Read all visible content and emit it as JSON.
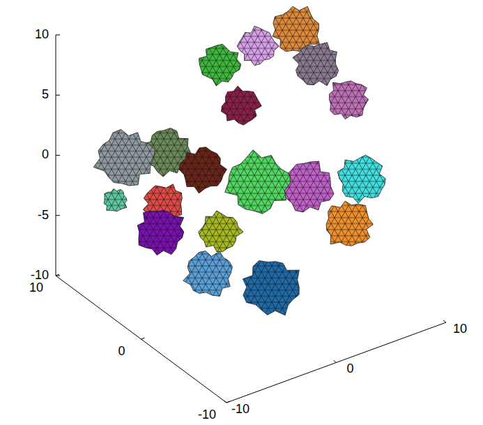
{
  "chart_data": {
    "type": "mesh3d",
    "xlim": [
      -10,
      10
    ],
    "xticks": [
      -10,
      0,
      10
    ],
    "ylim": [
      -10,
      10
    ],
    "yticks": [
      -10,
      0,
      10
    ],
    "zlim": [
      -10,
      10
    ],
    "zticks": [
      -10,
      -5,
      0,
      5,
      10
    ],
    "blobs": [
      {
        "color": "#3db83d",
        "x": -2,
        "y": 1.1,
        "z": 9.6,
        "size": 1.7
      },
      {
        "color": "#d9a0e8",
        "x": 2,
        "y": 1.8,
        "z": 9.4,
        "size": 1.6
      },
      {
        "color": "#e08a3c",
        "x": 6,
        "y": 2.4,
        "z": 9.1,
        "size": 2.0
      },
      {
        "color": "#8a7a90",
        "x": 6,
        "y": 0,
        "z": 7.5,
        "size": 1.9
      },
      {
        "color": "#c070b8",
        "x": 8,
        "y": -1.1,
        "z": 4.5,
        "size": 1.7
      },
      {
        "color": "#8a1f4a",
        "x": 0,
        "y": 1.2,
        "z": 5.4,
        "size": 1.6
      },
      {
        "color": "#8e9aa0",
        "x": -6,
        "y": 7,
        "z": 0,
        "size": 2.4
      },
      {
        "color": "#6a8a5a",
        "x": -4,
        "y": 4.7,
        "z": 1.1,
        "size": 2.0
      },
      {
        "color": "#6b2418",
        "x": -2,
        "y": 3.1,
        "z": -0.2,
        "size": 1.9
      },
      {
        "color": "#5ec9a0",
        "x": -8,
        "y": 5.6,
        "z": -2.1,
        "size": 1.0
      },
      {
        "color": "#e04a44",
        "x": -6,
        "y": 2.5,
        "z": -1.4,
        "size": 1.7
      },
      {
        "color": "#7a10b0",
        "x": -8,
        "y": 0.3,
        "z": -1.9,
        "size": 2.0
      },
      {
        "color": "#a8b820",
        "x": -4,
        "y": -1.5,
        "z": -2.3,
        "size": 1.7
      },
      {
        "color": "#50d860",
        "x": -2,
        "y": -3.4,
        "z": 2.1,
        "size": 2.6
      },
      {
        "color": "#c060c8",
        "x": 2,
        "y": -4,
        "z": 0.8,
        "size": 2.2
      },
      {
        "color": "#40e0e0",
        "x": 6,
        "y": -5.3,
        "z": 0.8,
        "size": 2.0
      },
      {
        "color": "#f0902c",
        "x": 4,
        "y": -6.3,
        "z": -1.8,
        "size": 2.0
      },
      {
        "color": "#5aa0d8",
        "x": -6,
        "y": -2.8,
        "z": -4.4,
        "size": 2.0
      },
      {
        "color": "#1f6aa8",
        "x": -2,
        "y": -5,
        "z": -5.7,
        "size": 2.4
      }
    ]
  }
}
